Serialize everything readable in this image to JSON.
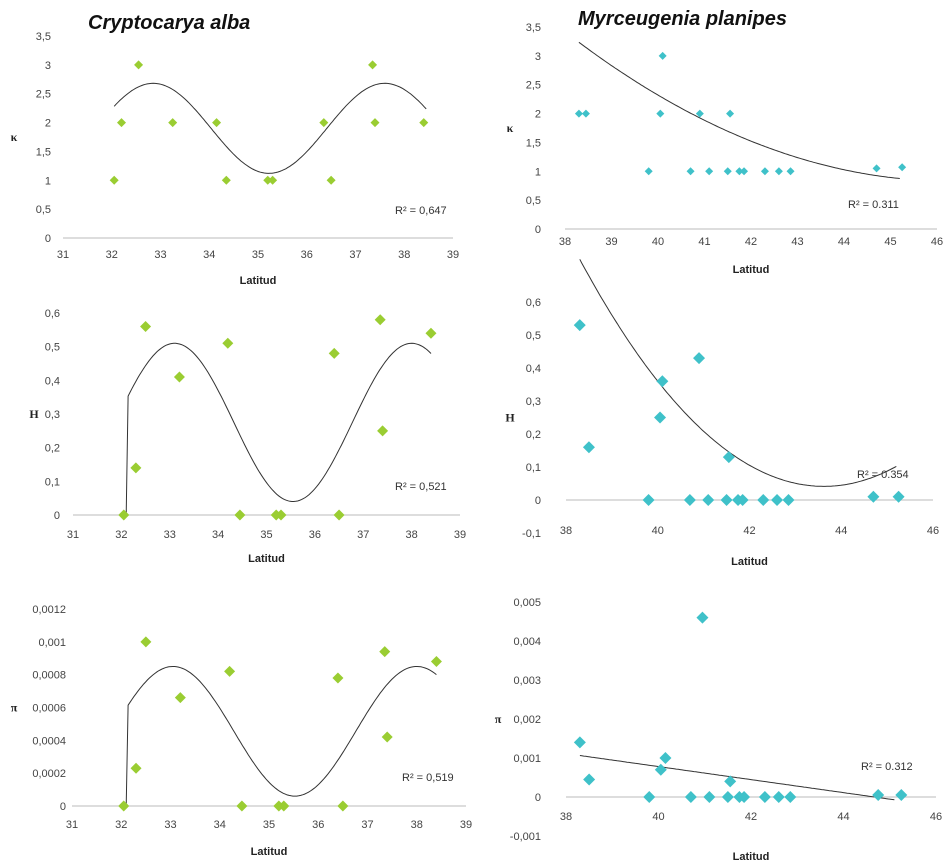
{
  "titles": {
    "left": "Cryptocarya alba",
    "right": "Myrceugenia planipes"
  },
  "colors": {
    "left_marker": "#9acd32",
    "right_marker": "#3fc1c9",
    "trend": "#333333"
  },
  "chart_data": [
    {
      "type": "scatter",
      "species": "Cryptocarya alba",
      "xlabel": "Latitud",
      "ylabel": "κ",
      "xlim": [
        31,
        39
      ],
      "ylim": [
        0,
        3.5
      ],
      "xticks": [
        "31",
        "32",
        "33",
        "34",
        "35",
        "36",
        "37",
        "38",
        "39"
      ],
      "yticks": [
        "0",
        "0,5",
        "1",
        "1,5",
        "2",
        "2,5",
        "3",
        "3,5"
      ],
      "r2_label": "R² = 0,647",
      "points": [
        [
          32.05,
          1
        ],
        [
          32.2,
          2
        ],
        [
          32.55,
          3
        ],
        [
          33.25,
          2
        ],
        [
          34.15,
          2
        ],
        [
          34.35,
          1
        ],
        [
          35.2,
          1
        ],
        [
          35.3,
          1
        ],
        [
          36.35,
          2
        ],
        [
          36.5,
          1
        ],
        [
          37.35,
          3
        ],
        [
          37.4,
          2
        ],
        [
          38.4,
          2
        ]
      ],
      "trend": {
        "kind": "sine",
        "center": 1.9,
        "amp": 0.78,
        "xpeak": 32.85,
        "period": 4.75,
        "x0": 32.05,
        "x1": 38.45
      }
    },
    {
      "type": "scatter",
      "species": "Myrceugenia planipes",
      "xlabel": "Latitud",
      "ylabel": "κ",
      "xlim": [
        38,
        46
      ],
      "ylim": [
        0,
        3.5
      ],
      "xticks": [
        "38",
        "39",
        "40",
        "41",
        "42",
        "43",
        "44",
        "45",
        "46"
      ],
      "yticks": [
        "0",
        "0,5",
        "1",
        "1,5",
        "2",
        "2,5",
        "3",
        "3,5"
      ],
      "r2_label": "R² = 0.311",
      "points": [
        [
          38.3,
          2
        ],
        [
          38.45,
          2
        ],
        [
          39.8,
          1
        ],
        [
          40.05,
          2
        ],
        [
          40.1,
          3
        ],
        [
          40.7,
          1
        ],
        [
          40.9,
          2
        ],
        [
          41.1,
          1
        ],
        [
          41.5,
          1
        ],
        [
          41.55,
          2
        ],
        [
          41.75,
          1
        ],
        [
          41.85,
          1
        ],
        [
          42.3,
          1
        ],
        [
          42.6,
          1
        ],
        [
          42.85,
          1
        ],
        [
          44.7,
          1.05
        ],
        [
          45.25,
          1.07
        ]
      ],
      "trend": {
        "kind": "quad",
        "coef": [
          0.0377,
          -3.49,
          81.6
        ],
        "x0": 38.3,
        "x1": 45.2
      }
    },
    {
      "type": "scatter",
      "species": "Cryptocarya alba",
      "xlabel": "Latitud",
      "ylabel": "H",
      "xlim": [
        31,
        39
      ],
      "ylim": [
        0,
        0.6
      ],
      "xticks": [
        "31",
        "32",
        "33",
        "34",
        "35",
        "36",
        "37",
        "38",
        "39"
      ],
      "yticks": [
        "0",
        "0,1",
        "0,2",
        "0,3",
        "0,4",
        "0,5",
        "0,6"
      ],
      "r2_label": "R² = 0,521",
      "points": [
        [
          32.05,
          0
        ],
        [
          32.3,
          0.14
        ],
        [
          32.5,
          0.56
        ],
        [
          33.2,
          0.41
        ],
        [
          34.2,
          0.51
        ],
        [
          34.45,
          0
        ],
        [
          35.2,
          0
        ],
        [
          35.3,
          0
        ],
        [
          36.4,
          0.48
        ],
        [
          36.5,
          0
        ],
        [
          37.35,
          0.58
        ],
        [
          37.4,
          0.25
        ],
        [
          38.4,
          0.54
        ]
      ],
      "trend": {
        "kind": "sine",
        "center": 0.275,
        "amp": 0.235,
        "xpeak": 33.1,
        "period": 4.9,
        "x0": 32.1,
        "x1": 38.4,
        "fromZero": true
      }
    },
    {
      "type": "scatter",
      "species": "Myrceugenia planipes",
      "xlabel": "Latitud",
      "ylabel": "H",
      "xlim": [
        38,
        46
      ],
      "ylim": [
        -0.1,
        0.6
      ],
      "xticks": [
        "38",
        "40",
        "42",
        "44",
        "46"
      ],
      "yticks": [
        "-0,1",
        "0",
        "0,1",
        "0,2",
        "0,3",
        "0,4",
        "0,5",
        "0,6"
      ],
      "r2_label": "R² = 0.354",
      "points": [
        [
          38.3,
          0.53
        ],
        [
          38.5,
          0.16
        ],
        [
          39.8,
          0
        ],
        [
          40.05,
          0.25
        ],
        [
          40.1,
          0.36
        ],
        [
          40.7,
          0
        ],
        [
          40.9,
          0.43
        ],
        [
          41.1,
          0
        ],
        [
          41.5,
          0
        ],
        [
          41.55,
          0.13
        ],
        [
          41.75,
          0
        ],
        [
          41.85,
          0
        ],
        [
          42.3,
          0
        ],
        [
          42.6,
          0
        ],
        [
          42.85,
          0
        ],
        [
          44.7,
          0.01
        ],
        [
          45.25,
          0.01
        ]
      ],
      "trend": {
        "kind": "quad",
        "coef": [
          0.0243,
          -2.12,
          46.28
        ],
        "x0": 38.3,
        "x1": 45.2
      }
    },
    {
      "type": "scatter",
      "species": "Cryptocarya alba",
      "xlabel": "Latitud",
      "ylabel": "π",
      "xlim": [
        31,
        39
      ],
      "ylim": [
        0,
        0.0012
      ],
      "xticks": [
        "31",
        "32",
        "33",
        "34",
        "35",
        "36",
        "37",
        "38",
        "39"
      ],
      "yticks": [
        "0",
        "0,0002",
        "0,0004",
        "0,0006",
        "0,0008",
        "0,001",
        "0,0012"
      ],
      "r2_label": "R² = 0,519",
      "points": [
        [
          32.05,
          0
        ],
        [
          32.3,
          0.00023
        ],
        [
          32.5,
          0.001
        ],
        [
          33.2,
          0.00066
        ],
        [
          34.2,
          0.00082
        ],
        [
          34.45,
          0
        ],
        [
          35.2,
          0
        ],
        [
          35.3,
          0
        ],
        [
          36.4,
          0.00078
        ],
        [
          36.5,
          0
        ],
        [
          37.35,
          0.00094
        ],
        [
          37.4,
          0.00042
        ],
        [
          38.4,
          0.00088
        ]
      ],
      "trend": {
        "kind": "sine",
        "center": 0.000455,
        "amp": 0.000395,
        "xpeak": 33.05,
        "period": 4.95,
        "x0": 32.1,
        "x1": 38.4,
        "fromZero": true
      }
    },
    {
      "type": "scatter",
      "species": "Myrceugenia planipes",
      "xlabel": "Latitud",
      "ylabel": "π",
      "xlim": [
        38,
        46
      ],
      "ylim": [
        -0.001,
        0.005
      ],
      "xticks": [
        "38",
        "40",
        "42",
        "44",
        "46"
      ],
      "yticks": [
        "-0,001",
        "0",
        "0,001",
        "0,002",
        "0,003",
        "0,004",
        "0,005"
      ],
      "r2_label": "R² = 0.312",
      "points": [
        [
          38.3,
          0.0014
        ],
        [
          38.5,
          0.00045
        ],
        [
          39.8,
          0
        ],
        [
          40.05,
          0.0007
        ],
        [
          40.15,
          0.001
        ],
        [
          40.7,
          0
        ],
        [
          40.95,
          0.0046
        ],
        [
          41.1,
          0
        ],
        [
          41.5,
          0
        ],
        [
          41.55,
          0.0004
        ],
        [
          41.75,
          0
        ],
        [
          41.85,
          0
        ],
        [
          42.3,
          0
        ],
        [
          42.6,
          0
        ],
        [
          42.85,
          0
        ],
        [
          44.75,
          5e-05
        ],
        [
          45.25,
          5e-05
        ]
      ],
      "trend": {
        "kind": "linear",
        "coef": [
          -0.000167,
          0.00746
        ],
        "x0": 38.3,
        "x1": 45.1
      }
    }
  ]
}
